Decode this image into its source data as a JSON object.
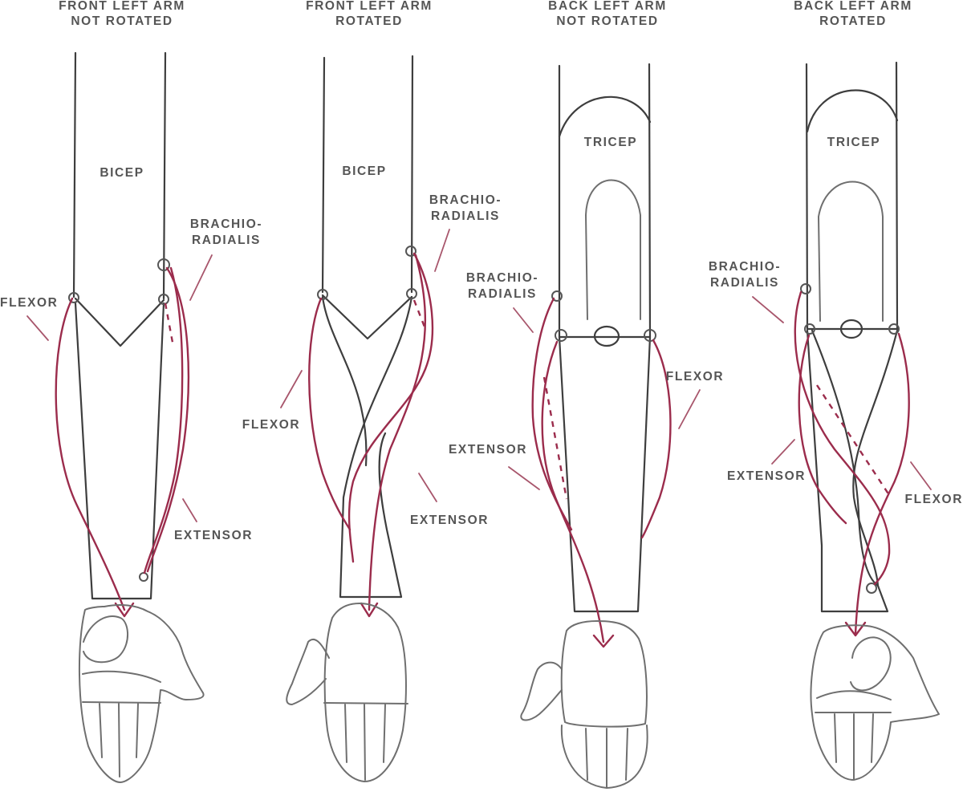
{
  "colors": {
    "pencil": "#3e3e3e",
    "muscle": "#9b2c4c",
    "leader": "#a8566c",
    "label": "#555555"
  },
  "panels": [
    {
      "title_line1": "FRONT LEFT ARM",
      "title_line2": "NOT ROTATED",
      "upper_muscle": "BICEP",
      "brachio_line1": "BRACHIO-",
      "brachio_line2": "RADIALIS",
      "flexor": "FLEXOR",
      "extensor": "EXTENSOR"
    },
    {
      "title_line1": "FRONT LEFT ARM",
      "title_line2": "ROTATED",
      "upper_muscle": "BICEP",
      "brachio_line1": "BRACHIO-",
      "brachio_line2": "RADIALIS",
      "flexor": "FLEXOR",
      "extensor": "EXTENSOR"
    },
    {
      "title_line1": "BACK LEFT ARM",
      "title_line2": "NOT ROTATED",
      "upper_muscle": "TRICEP",
      "brachio_line1": "BRACHIO-",
      "brachio_line2": "RADIALIS",
      "flexor": "FLEXOR",
      "extensor": "EXTENSOR"
    },
    {
      "title_line1": "BACK LEFT ARM",
      "title_line2": "ROTATED",
      "upper_muscle": "TRICEP",
      "brachio_line1": "BRACHIO-",
      "brachio_line2": "RADIALIS",
      "flexor": "FLEXOR",
      "extensor": "EXTENSOR"
    }
  ]
}
